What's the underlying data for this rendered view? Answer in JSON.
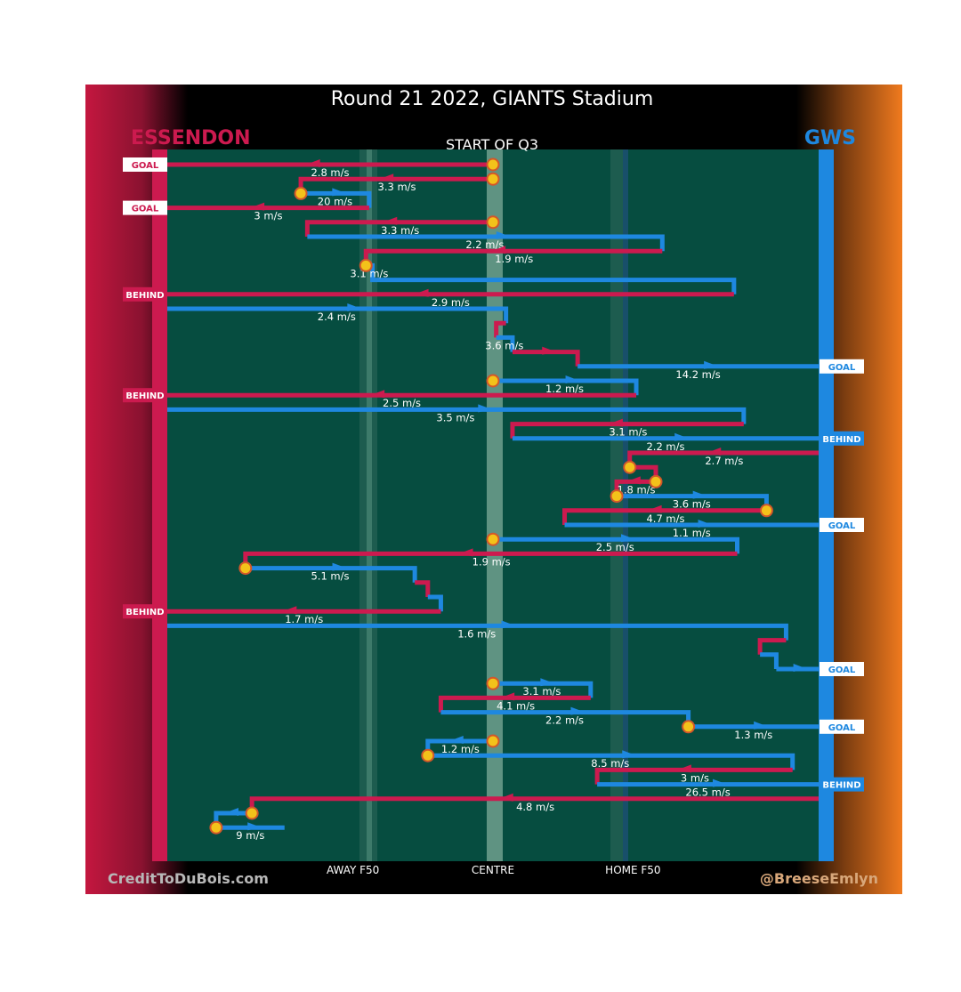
{
  "colors": {
    "essendon": "#cc1a4f",
    "gws": "#1e88e0",
    "field": "#064d40",
    "marker": "#f3c21a",
    "marker_edge": "#d2572a",
    "gws_orange": "#e8741e"
  },
  "chart_data": {
    "type": "line",
    "title": "Round 21 2022, GIANTS Stadium",
    "subtitle": "START OF Q3",
    "team_left": "ESSENDON",
    "team_right": "GWS",
    "credit_left": "CreditToDuBois.com",
    "credit_right": "@BreeseEmlyn",
    "x_ticks": [
      {
        "label": "AWAY F50",
        "x": 28.5
      },
      {
        "label": "CENTRE",
        "x": 50
      },
      {
        "label": "HOME F50",
        "x": 71.5
      }
    ],
    "x_range": [
      0,
      100
    ],
    "chains": [
      {
        "team": "ESS",
        "speed": "2.8 m/s",
        "points": [
          [
            50,
            1
          ],
          [
            0,
            1
          ]
        ],
        "start_marker": true,
        "result": "GOAL"
      },
      {
        "team": "ESS",
        "speed": "3.3 m/s",
        "points": [
          [
            50,
            2
          ],
          [
            20.5,
            2
          ],
          [
            20.5,
            3
          ]
        ],
        "start_marker": true
      },
      {
        "team": "GWS",
        "speed": "20 m/s",
        "points": [
          [
            20.5,
            3
          ],
          [
            31,
            3
          ],
          [
            31,
            4
          ]
        ],
        "start_marker": true
      },
      {
        "team": "ESS",
        "speed": "3 m/s",
        "points": [
          [
            31,
            4
          ],
          [
            0,
            4
          ]
        ],
        "result": "GOAL"
      },
      {
        "team": "ESS",
        "speed": "3.3 m/s",
        "points": [
          [
            50,
            5
          ],
          [
            21.5,
            5
          ],
          [
            21.5,
            6
          ]
        ],
        "start_marker": true
      },
      {
        "team": "GWS",
        "speed": "2.2 m/s",
        "points": [
          [
            21.5,
            6
          ],
          [
            76,
            6
          ],
          [
            76,
            7
          ]
        ]
      },
      {
        "team": "ESS",
        "speed": "1.9 m/s",
        "points": [
          [
            76,
            7
          ],
          [
            30.5,
            7
          ],
          [
            30.5,
            8
          ]
        ]
      },
      {
        "team": "GWS",
        "speed": "3.1 m/s",
        "points": [
          [
            30.5,
            8
          ],
          [
            31.5,
            8
          ],
          [
            31.5,
            9
          ],
          [
            87,
            9
          ],
          [
            87,
            10
          ]
        ],
        "start_marker": true
      },
      {
        "team": "ESS",
        "speed": "2.9 m/s",
        "points": [
          [
            87,
            10
          ],
          [
            0,
            10
          ]
        ],
        "result": "BEHIND"
      },
      {
        "team": "GWS",
        "speed": "2.4 m/s",
        "points": [
          [
            0,
            11
          ],
          [
            52,
            11
          ],
          [
            52,
            12
          ]
        ]
      },
      {
        "team": "ESS",
        "speed": "",
        "points": [
          [
            52,
            12
          ],
          [
            50.5,
            12
          ],
          [
            50.5,
            13
          ]
        ]
      },
      {
        "team": "GWS",
        "speed": "3.6 m/s",
        "points": [
          [
            50.5,
            13
          ],
          [
            53,
            13
          ],
          [
            53,
            14
          ]
        ]
      },
      {
        "team": "ESS",
        "speed": "",
        "points": [
          [
            53,
            14
          ],
          [
            63,
            14
          ],
          [
            63,
            15
          ]
        ]
      },
      {
        "team": "GWS",
        "speed": "14.2 m/s",
        "points": [
          [
            63,
            15
          ],
          [
            100,
            15
          ]
        ],
        "result": "GOAL"
      },
      {
        "team": "GWS",
        "speed": "1.2 m/s",
        "points": [
          [
            50,
            16
          ],
          [
            72,
            16
          ],
          [
            72,
            17
          ]
        ],
        "start_marker": true
      },
      {
        "team": "ESS",
        "speed": "2.5 m/s",
        "points": [
          [
            72,
            17
          ],
          [
            0,
            17
          ]
        ],
        "result": "BEHIND"
      },
      {
        "team": "GWS",
        "speed": "3.5 m/s",
        "points": [
          [
            0,
            18
          ],
          [
            88.5,
            18
          ],
          [
            88.5,
            19
          ]
        ]
      },
      {
        "team": "ESS",
        "speed": "3.1 m/s",
        "points": [
          [
            88.5,
            19
          ],
          [
            53,
            19
          ],
          [
            53,
            20
          ]
        ]
      },
      {
        "team": "GWS",
        "speed": "2.2 m/s",
        "points": [
          [
            53,
            20
          ],
          [
            100,
            20
          ]
        ],
        "result": "BEHIND"
      },
      {
        "team": "ESS",
        "speed": "2.7 m/s",
        "points": [
          [
            100,
            21
          ],
          [
            71,
            21
          ],
          [
            71,
            22
          ]
        ]
      },
      {
        "team": "ESS",
        "speed": "",
        "points": [
          [
            71,
            22
          ],
          [
            75,
            22
          ],
          [
            75,
            23
          ]
        ],
        "start_marker": true
      },
      {
        "team": "ESS",
        "speed": "1.8 m/s",
        "points": [
          [
            75,
            23
          ],
          [
            69,
            23
          ],
          [
            69,
            24
          ]
        ],
        "start_marker": true
      },
      {
        "team": "GWS",
        "speed": "3.6 m/s",
        "points": [
          [
            69,
            24
          ],
          [
            92,
            24
          ],
          [
            92,
            25
          ]
        ],
        "start_marker": true
      },
      {
        "team": "ESS",
        "speed": "4.7 m/s",
        "points": [
          [
            92,
            25
          ],
          [
            61,
            25
          ],
          [
            61,
            26
          ]
        ],
        "start_marker": true
      },
      {
        "team": "GWS",
        "speed": "1.1 m/s",
        "points": [
          [
            61,
            26
          ],
          [
            100,
            26
          ]
        ],
        "result": "GOAL"
      },
      {
        "team": "GWS",
        "speed": "2.5 m/s",
        "points": [
          [
            50,
            27
          ],
          [
            87.5,
            27
          ],
          [
            87.5,
            28
          ]
        ],
        "start_marker": true
      },
      {
        "team": "ESS",
        "speed": "1.9 m/s",
        "points": [
          [
            87.5,
            28
          ],
          [
            12,
            28
          ],
          [
            12,
            29
          ]
        ]
      },
      {
        "team": "GWS",
        "speed": "5.1 m/s",
        "points": [
          [
            12,
            29
          ],
          [
            38,
            29
          ],
          [
            38,
            30
          ]
        ],
        "start_marker": true
      },
      {
        "team": "ESS",
        "speed": "",
        "points": [
          [
            38,
            30
          ],
          [
            40,
            30
          ],
          [
            40,
            31
          ]
        ]
      },
      {
        "team": "GWS",
        "speed": "",
        "points": [
          [
            40,
            31
          ],
          [
            42,
            31
          ],
          [
            42,
            32
          ]
        ]
      },
      {
        "team": "ESS",
        "speed": "1.7 m/s",
        "points": [
          [
            42,
            32
          ],
          [
            0,
            32
          ]
        ],
        "result": "BEHIND"
      },
      {
        "team": "GWS",
        "speed": "1.6 m/s",
        "points": [
          [
            0,
            33
          ],
          [
            95,
            33
          ],
          [
            95,
            34
          ]
        ]
      },
      {
        "team": "ESS",
        "speed": "",
        "points": [
          [
            95,
            34
          ],
          [
            91,
            34
          ],
          [
            91,
            35
          ]
        ]
      },
      {
        "team": "GWS",
        "speed": "",
        "points": [
          [
            91,
            35
          ],
          [
            93.5,
            35
          ],
          [
            93.5,
            36
          ]
        ]
      },
      {
        "team": "GWS",
        "speed": "",
        "points": [
          [
            93.5,
            36
          ],
          [
            100,
            36
          ]
        ],
        "result": "GOAL"
      },
      {
        "team": "GWS",
        "speed": "3.1 m/s",
        "points": [
          [
            50,
            37
          ],
          [
            65,
            37
          ],
          [
            65,
            38
          ]
        ],
        "start_marker": true
      },
      {
        "team": "ESS",
        "speed": "4.1 m/s",
        "points": [
          [
            65,
            38
          ],
          [
            42,
            38
          ],
          [
            42,
            39
          ]
        ]
      },
      {
        "team": "GWS",
        "speed": "2.2 m/s",
        "points": [
          [
            42,
            39
          ],
          [
            80,
            39
          ],
          [
            80,
            40
          ]
        ]
      },
      {
        "team": "GWS",
        "speed": "1.3 m/s",
        "points": [
          [
            80,
            40
          ],
          [
            100,
            40
          ]
        ],
        "start_marker": true,
        "result": "GOAL"
      },
      {
        "team": "GWS",
        "speed": "1.2 m/s",
        "points": [
          [
            50,
            41
          ],
          [
            40,
            41
          ],
          [
            40,
            42
          ]
        ],
        "start_marker": true
      },
      {
        "team": "GWS",
        "speed": "8.5 m/s",
        "points": [
          [
            40,
            42
          ],
          [
            96,
            42
          ],
          [
            96,
            43
          ]
        ],
        "start_marker": true
      },
      {
        "team": "ESS",
        "speed": "3 m/s",
        "points": [
          [
            96,
            43
          ],
          [
            66,
            43
          ],
          [
            66,
            44
          ]
        ]
      },
      {
        "team": "GWS",
        "speed": "26.5 m/s",
        "points": [
          [
            66,
            44
          ],
          [
            100,
            44
          ]
        ],
        "result": "BEHIND"
      },
      {
        "team": "ESS",
        "speed": "4.8 m/s",
        "points": [
          [
            100,
            45
          ],
          [
            13,
            45
          ],
          [
            13,
            46
          ]
        ]
      },
      {
        "team": "GWS",
        "speed": "",
        "points": [
          [
            13,
            46
          ],
          [
            7.5,
            46
          ],
          [
            7.5,
            47
          ]
        ],
        "start_marker": true
      },
      {
        "team": "GWS",
        "speed": "9 m/s",
        "points": [
          [
            7.5,
            47
          ],
          [
            18,
            47
          ]
        ],
        "start_marker": true
      }
    ]
  }
}
